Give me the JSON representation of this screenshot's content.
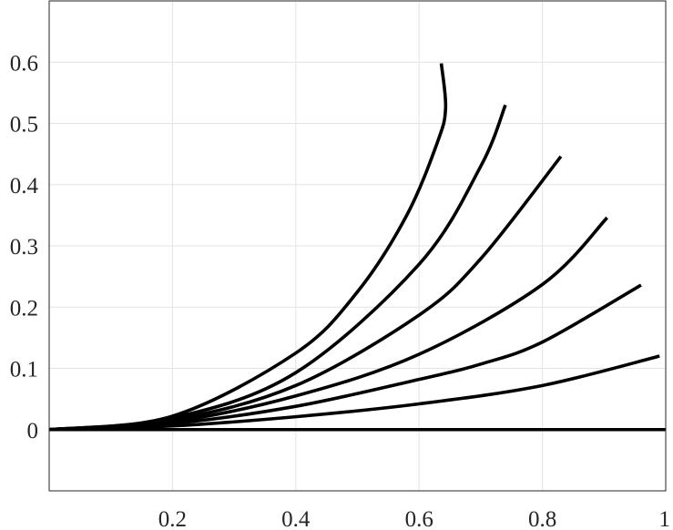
{
  "chart_data": {
    "type": "line",
    "title": "",
    "xlabel": "",
    "ylabel": "",
    "xlim": [
      0,
      1
    ],
    "ylim": [
      -0.1,
      0.7
    ],
    "grid": true,
    "legend": "none",
    "line_color": "#000000",
    "x_ticks": [
      0.2,
      0.4,
      0.6,
      0.8,
      1
    ],
    "x_tick_labels": [
      "0.2",
      "0.4",
      "0.6",
      "0.8",
      "1"
    ],
    "y_ticks": [
      0,
      0.1,
      0.2,
      0.3,
      0.4,
      0.5,
      0.6
    ],
    "y_tick_labels": [
      "0",
      "0.1",
      "0.2",
      "0.3",
      "0.4",
      "0.5",
      "0.6"
    ],
    "series": [
      {
        "points": [
          [
            0,
            0
          ],
          [
            0.2,
            0.0
          ],
          [
            0.4,
            0.0
          ],
          [
            0.6,
            0.0
          ],
          [
            0.8,
            0.0
          ],
          [
            1.0,
            0.0
          ]
        ]
      },
      {
        "points": [
          [
            0,
            0
          ],
          [
            0.2,
            0.006
          ],
          [
            0.4,
            0.021
          ],
          [
            0.6,
            0.042
          ],
          [
            0.8,
            0.072
          ],
          [
            0.99,
            0.12
          ]
        ]
      },
      {
        "points": [
          [
            0,
            0
          ],
          [
            0.2,
            0.01
          ],
          [
            0.4,
            0.038
          ],
          [
            0.6,
            0.082
          ],
          [
            0.7,
            0.107
          ],
          [
            0.8,
            0.143
          ],
          [
            0.96,
            0.236
          ]
        ]
      },
      {
        "points": [
          [
            0,
            0
          ],
          [
            0.2,
            0.013
          ],
          [
            0.4,
            0.055
          ],
          [
            0.6,
            0.123
          ],
          [
            0.8,
            0.237
          ],
          [
            0.905,
            0.346
          ]
        ]
      },
      {
        "points": [
          [
            0,
            0
          ],
          [
            0.2,
            0.016
          ],
          [
            0.4,
            0.072
          ],
          [
            0.6,
            0.187
          ],
          [
            0.7,
            0.279
          ],
          [
            0.83,
            0.446
          ]
        ]
      },
      {
        "points": [
          [
            0,
            0
          ],
          [
            0.2,
            0.019
          ],
          [
            0.4,
            0.093
          ],
          [
            0.6,
            0.27
          ],
          [
            0.7,
            0.43
          ],
          [
            0.74,
            0.53
          ]
        ]
      },
      {
        "points": [
          [
            0,
            0
          ],
          [
            0.2,
            0.022
          ],
          [
            0.4,
            0.125
          ],
          [
            0.5,
            0.225
          ],
          [
            0.58,
            0.35
          ],
          [
            0.63,
            0.47
          ],
          [
            0.643,
            0.525
          ],
          [
            0.636,
            0.598
          ]
        ]
      }
    ]
  }
}
